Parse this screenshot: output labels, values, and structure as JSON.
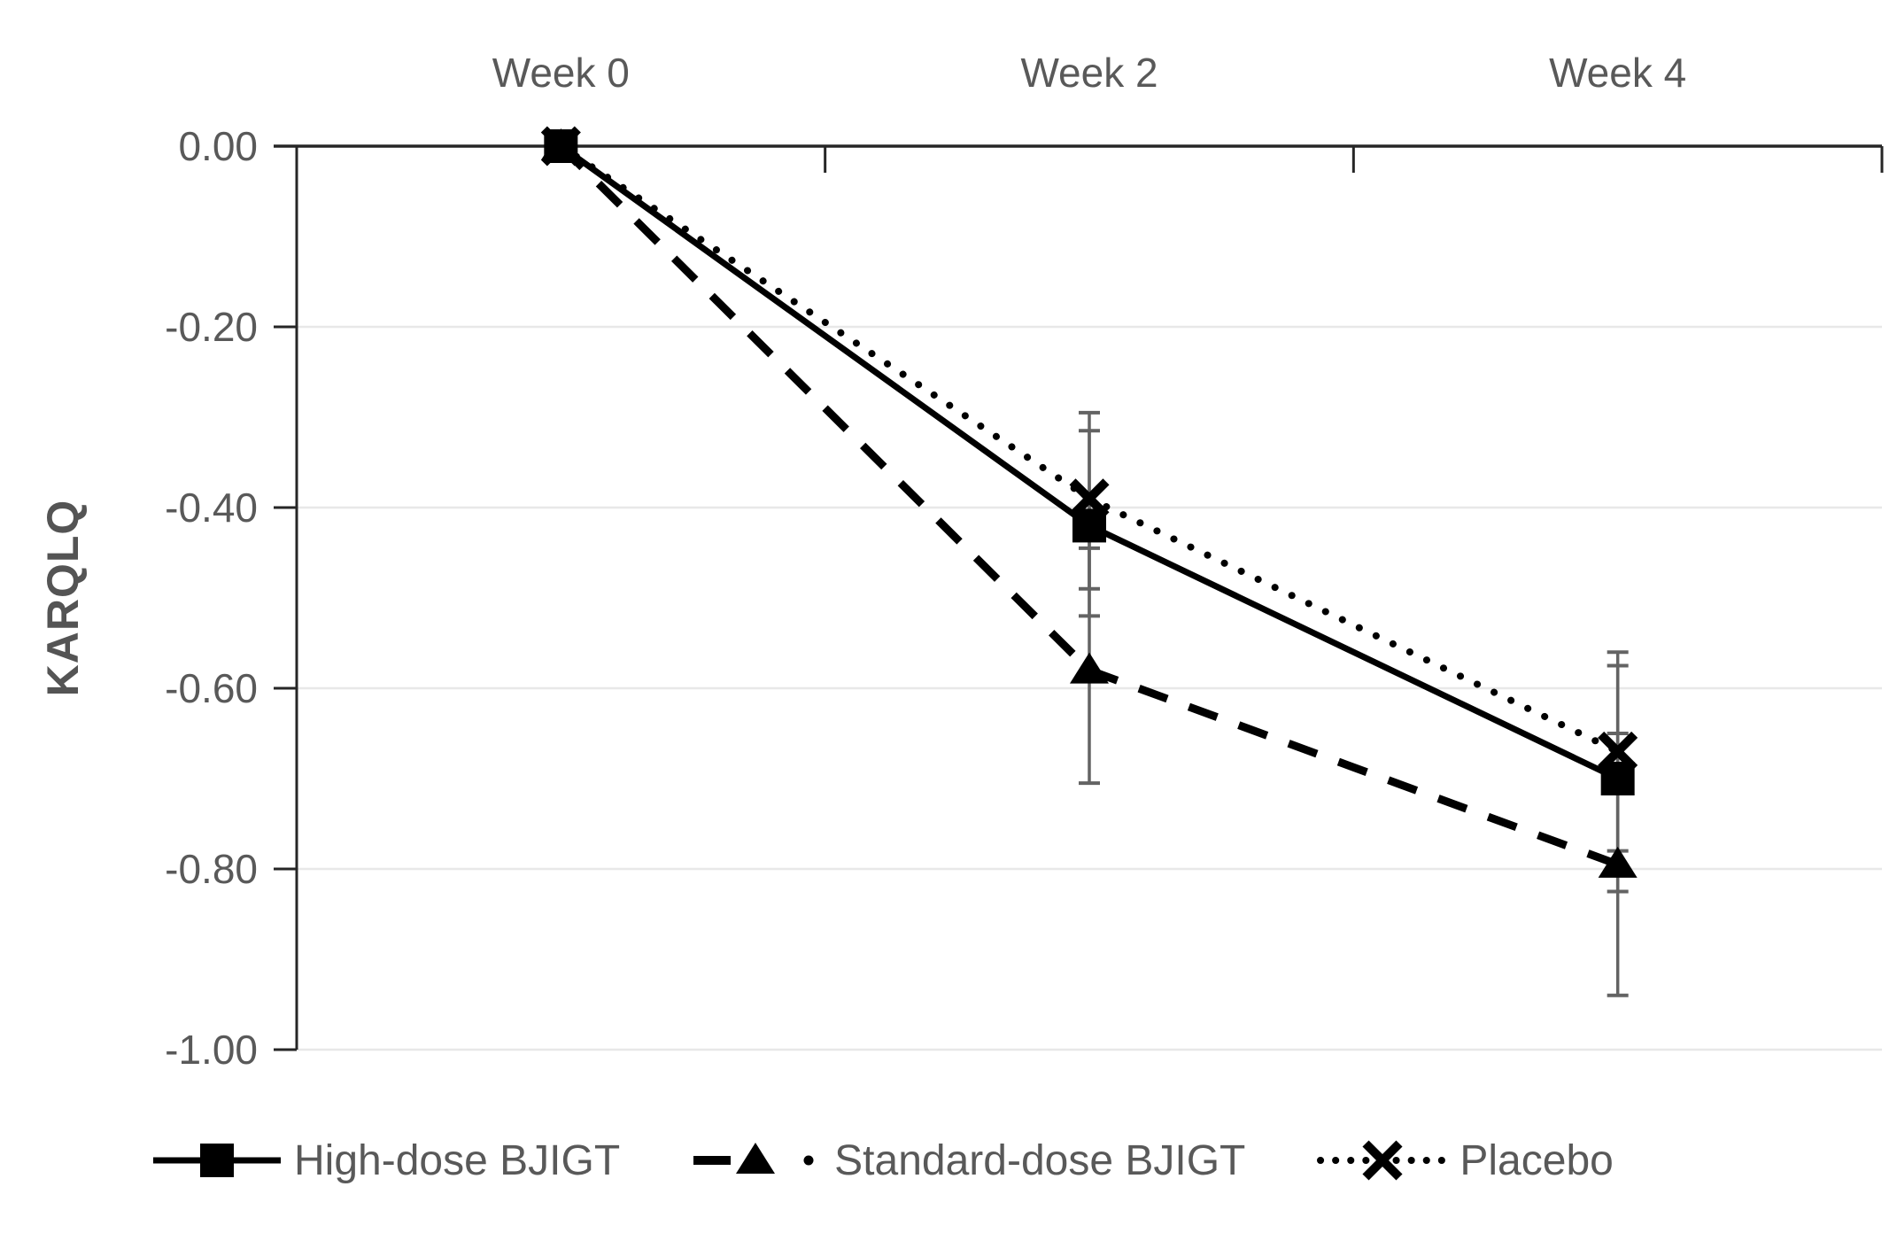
{
  "chart_data": {
    "type": "line",
    "title": "",
    "ylabel": "KARQLQ",
    "xlabel": "",
    "categories": [
      "Week 0",
      "Week 2",
      "Week 4"
    ],
    "ylim": [
      0,
      -1.0
    ],
    "ytick_values": [
      0,
      -0.2,
      -0.4,
      -0.6,
      -0.8,
      -1.0
    ],
    "ytick_labels": [
      "0.00",
      "-0.20",
      "-0.40",
      "-0.60",
      "-0.80",
      "-1.00"
    ],
    "grid": true,
    "legend_position": "bottom",
    "series": [
      {
        "name": "High-dose BJIGT",
        "marker": "square",
        "line_style": "solid",
        "color": "#000000",
        "values": [
          0,
          -0.42,
          -0.7
        ],
        "error_high": [
          null,
          -0.315,
          -0.575
        ],
        "error_low": [
          null,
          -0.52,
          -0.825
        ]
      },
      {
        "name": "Standard-dose BJIGT",
        "marker": "triangle",
        "line_style": "dashed",
        "color": "#000000",
        "values": [
          0,
          -0.58,
          -0.795
        ],
        "error_high": [
          null,
          -0.445,
          -0.65
        ],
        "error_low": [
          null,
          -0.705,
          -0.94
        ]
      },
      {
        "name": "Placebo",
        "marker": "x",
        "line_style": "dotted",
        "color": "#000000",
        "values": [
          0,
          -0.39,
          -0.67
        ],
        "error_high": [
          null,
          -0.295,
          -0.56
        ],
        "error_low": [
          null,
          -0.49,
          -0.78
        ]
      }
    ],
    "colors": {
      "axis": "#262626",
      "gridline": "#e8e8e8",
      "error_bar": "#636363",
      "label_text": "#595959"
    }
  }
}
